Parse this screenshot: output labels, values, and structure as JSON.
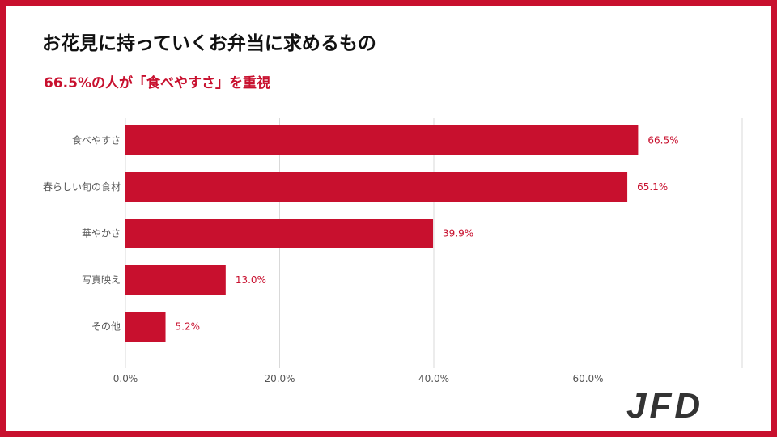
{
  "header": {
    "title": "お花見に持っていくお弁当に求めるもの",
    "subtitle": "66.5%の人が「食べやすさ」を重視"
  },
  "colors": {
    "accent": "#c8102e",
    "bar": "#c8102e",
    "grid": "#d9d9d9",
    "tick_text": "#555555"
  },
  "logo": {
    "text": "JFD"
  },
  "chart_data": {
    "type": "bar",
    "orientation": "horizontal",
    "categories": [
      "食べやすさ",
      "春らしい旬の食材",
      "華やかさ",
      "写真映え",
      "その他"
    ],
    "values": [
      66.5,
      65.1,
      39.9,
      13.0,
      5.2
    ],
    "data_labels": [
      "66.5%",
      "65.1%",
      "39.9%",
      "13.0%",
      "5.2%"
    ],
    "x_ticks": [
      "0.0%",
      "20.0%",
      "40.0%",
      "60.0%"
    ],
    "x_tick_values": [
      0,
      20,
      40,
      60
    ],
    "xlim": [
      0,
      80
    ],
    "grid": true,
    "legend": "none"
  }
}
